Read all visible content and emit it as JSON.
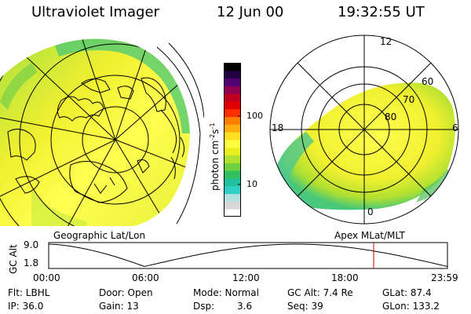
{
  "header": {
    "instrument": "Ultraviolet Imager",
    "date": "12 Jun 00",
    "time": "19:32:55 UT"
  },
  "colorbar": {
    "unit_main": "photon cm",
    "unit_sup1": "-2",
    "unit_mid": "s",
    "unit_sup2": "-1",
    "tick_100": "100",
    "tick_10": "10",
    "colors": [
      "#ffffff",
      "#d8d8d8",
      "#b4e0e0",
      "#30d0c8",
      "#20c0a0",
      "#30c060",
      "#70d040",
      "#b0e030",
      "#e8f020",
      "#ffff40",
      "#ffe020",
      "#ffb010",
      "#ff8000",
      "#ff3000",
      "#e00000",
      "#c00020",
      "#900050",
      "#500070",
      "#200040",
      "#000000"
    ]
  },
  "geo_map": {
    "caption": "Geographic Lat/Lon"
  },
  "apex_map": {
    "caption": "Apex MLat/MLT",
    "mlt_12": "12",
    "mlt_18": "18",
    "mlt_6": "6",
    "mlt_0": "0",
    "lat_60": "60",
    "lat_70": "70",
    "lat_80": "80"
  },
  "timeline": {
    "ylabel": "GC Alt",
    "y_top": "9.0",
    "y_bot": "1.8",
    "x_ticks": [
      "00:00",
      "06:00",
      "12:00",
      "18:00",
      "23:59"
    ],
    "current_fraction": 0.815
  },
  "footer": {
    "r1": {
      "filter": "Flt: LBHL",
      "door": "Door: Open",
      "mode": "Mode: Normal",
      "gcalt": "GC Alt: 7.4 Re",
      "glat": "GLat: 87.4"
    },
    "r2": {
      "ip": "IP: 36.0",
      "gain": "Gain: 13",
      "dsp_label": "Dsp:",
      "dsp_value": "3.6",
      "seq": "Seq: 39",
      "glon": "GLon: 133.2"
    }
  }
}
